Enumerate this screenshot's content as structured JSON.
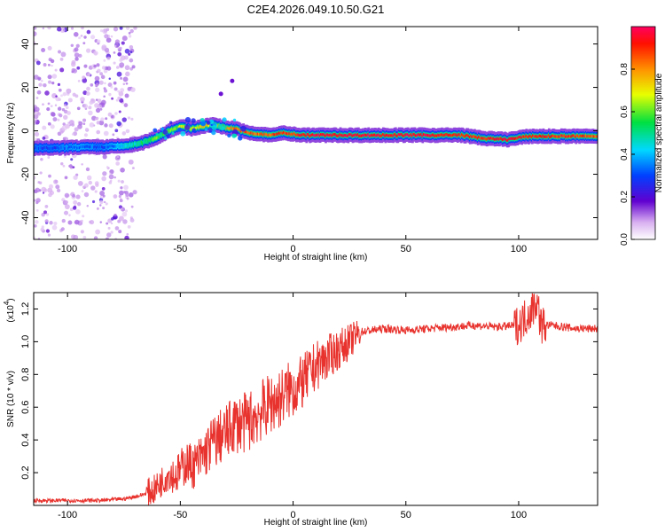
{
  "title": "C2E4.2026.049.10.50.G21",
  "chart_data": [
    {
      "type": "heatmap",
      "xlabel": "Height of straight line (km)",
      "ylabel": "Frequency (Hz)",
      "xlim": [
        -115,
        135
      ],
      "ylim": [
        -50,
        48
      ],
      "xticks": [
        -100,
        -50,
        0,
        50,
        100
      ],
      "yticks": [
        -40,
        -20,
        0,
        20,
        40
      ],
      "xtick_labels": [
        "-100",
        "-50",
        "0",
        "50",
        "100"
      ],
      "ytick_labels": [
        "-40",
        "-20",
        "0",
        "20",
        "40"
      ],
      "ridge": {
        "x": [
          -115,
          -105,
          -95,
          -85,
          -75,
          -68,
          -60,
          -55,
          -50,
          -45,
          -40,
          -35,
          -30,
          -25,
          -20,
          -15,
          -10,
          -5,
          0,
          5,
          10,
          20,
          40,
          60,
          75,
          85,
          95,
          105,
          115,
          125,
          135
        ],
        "freq": [
          -8,
          -8,
          -7.5,
          -7.5,
          -7,
          -6,
          -3,
          0,
          2,
          1,
          2,
          3,
          1.5,
          1,
          -1,
          -1.5,
          -2,
          -1,
          -1.5,
          -2,
          -2,
          -2,
          -2,
          -2,
          -2,
          -3.5,
          -4,
          -2.5,
          -2.5,
          -2.5,
          -2.5
        ],
        "amplitude": [
          0.3,
          0.3,
          0.35,
          0.3,
          0.4,
          0.5,
          0.6,
          0.6,
          0.65,
          0.7,
          0.7,
          0.75,
          0.8,
          0.85,
          0.85,
          0.85,
          0.85,
          0.9,
          0.9,
          0.95,
          0.95,
          0.95,
          0.95,
          0.95,
          0.9,
          0.9,
          0.95,
          0.9,
          0.9,
          0.9,
          0.85
        ]
      },
      "noise_region_x": [
        -115,
        -70
      ],
      "colorbar": {
        "label": "Normalized spectral amplitude",
        "range": [
          0,
          1
        ],
        "ticks": [
          0.0,
          0.2,
          0.4,
          0.6,
          0.8
        ],
        "tick_labels": [
          "0.0",
          "0.2",
          "0.4",
          "0.6",
          "0.8"
        ]
      }
    },
    {
      "type": "line",
      "xlabel": "Height of straight line (km)",
      "ylabel": "SNR (10 * v/v)",
      "y_scale_label": "(x10",
      "y_scale_exponent": "4",
      "y_scale_suffix": ")",
      "xlim": [
        -115,
        135
      ],
      "ylim": [
        0,
        1.3
      ],
      "xticks": [
        -100,
        -50,
        0,
        50,
        100
      ],
      "yticks": [
        0.2,
        0.4,
        0.6,
        0.8,
        1.0,
        1.2
      ],
      "xtick_labels": [
        "-100",
        "-50",
        "0",
        "50",
        "100"
      ],
      "ytick_labels": [
        "0.2",
        "0.4",
        "0.6",
        "0.8",
        "1.0",
        "1.2"
      ],
      "series": [
        {
          "name": "SNR",
          "color": "#e8322d",
          "x": [
            -115,
            -100,
            -85,
            -75,
            -68,
            -62,
            -58,
            -55,
            -52,
            -50,
            -47,
            -44,
            -40,
            -36,
            -32,
            -29,
            -26,
            -22,
            -18,
            -14,
            -10,
            -6,
            -2,
            2,
            6,
            10,
            15,
            20,
            25,
            30,
            40,
            50,
            60,
            70,
            80,
            90,
            100,
            103,
            106,
            108,
            110,
            115,
            125,
            135
          ],
          "y": [
            0.03,
            0.03,
            0.03,
            0.04,
            0.06,
            0.09,
            0.15,
            0.2,
            0.18,
            0.22,
            0.26,
            0.24,
            0.3,
            0.38,
            0.42,
            0.45,
            0.5,
            0.5,
            0.53,
            0.58,
            0.62,
            0.65,
            0.7,
            0.72,
            0.78,
            0.85,
            0.9,
            0.95,
            1.0,
            1.06,
            1.08,
            1.07,
            1.08,
            1.09,
            1.1,
            1.09,
            1.1,
            1.15,
            1.2,
            1.25,
            1.1,
            1.1,
            1.08,
            1.08
          ]
        }
      ]
    }
  ]
}
